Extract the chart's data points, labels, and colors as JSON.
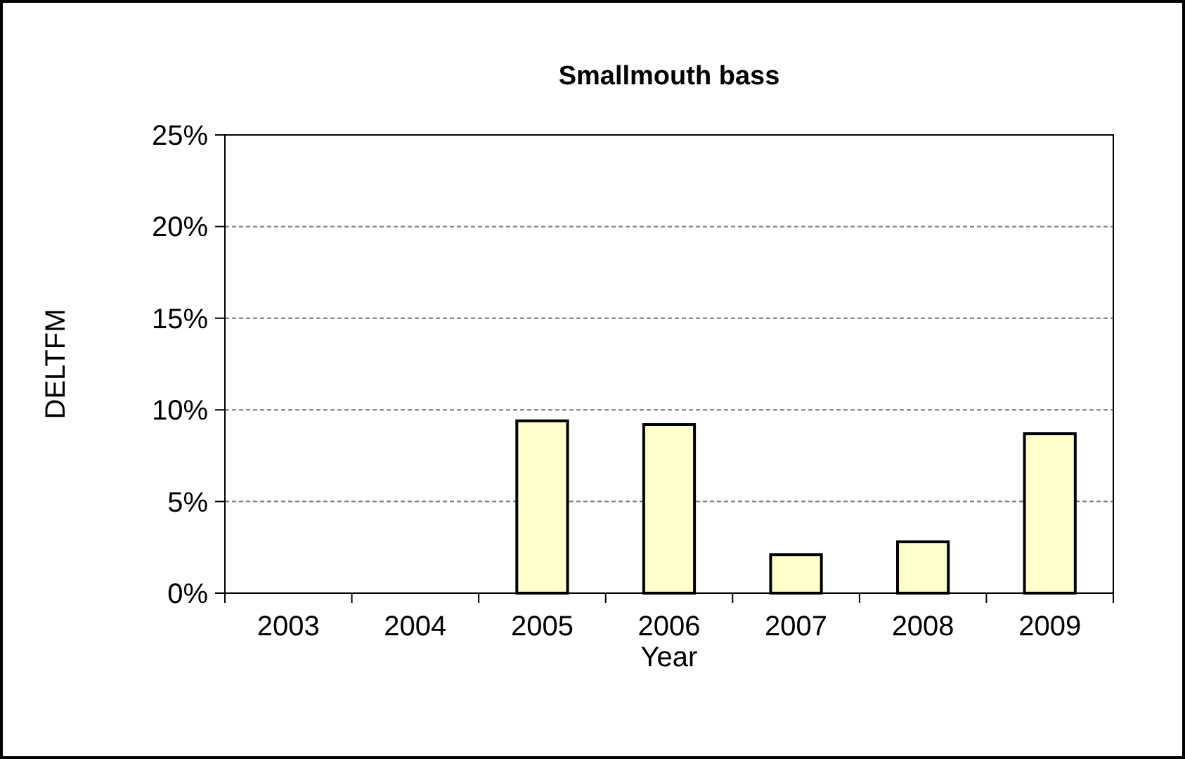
{
  "chart_data": {
    "type": "bar",
    "title": "Smallmouth bass",
    "xlabel": "Year",
    "ylabel": "DELTFM",
    "categories": [
      "2003",
      "2004",
      "2005",
      "2006",
      "2007",
      "2008",
      "2009"
    ],
    "values": [
      0,
      0,
      9.4,
      9.2,
      2.1,
      2.8,
      8.7
    ],
    "color": "#ffffcc",
    "ylim": [
      0,
      25
    ],
    "yticks": [
      {
        "value": 0,
        "label": "0%"
      },
      {
        "value": 5,
        "label": "5%"
      },
      {
        "value": 10,
        "label": "10%"
      },
      {
        "value": 15,
        "label": "15%"
      },
      {
        "value": 20,
        "label": "20%"
      },
      {
        "value": 25,
        "label": "25%"
      }
    ],
    "grid": "y"
  }
}
